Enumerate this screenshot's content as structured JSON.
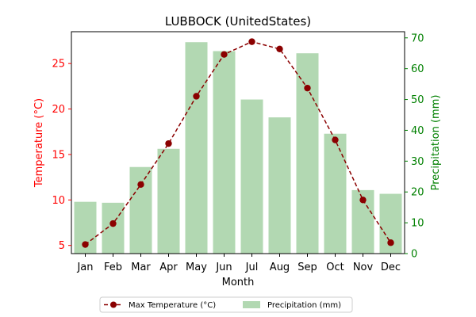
{
  "chart_data": {
    "type": "bar+line",
    "title": "LUBBOCK (UnitedStates)",
    "xlabel": "Month",
    "ylabel_left": "Temperature (°C)",
    "ylabel_right": "Precipitation (mm)",
    "categories": [
      "Jan",
      "Feb",
      "Mar",
      "Apr",
      "May",
      "Jun",
      "Jul",
      "Aug",
      "Sep",
      "Oct",
      "Nov",
      "Dec"
    ],
    "y_left_ticks": [
      5,
      10,
      15,
      20,
      25
    ],
    "y_left_range": [
      4.1,
      28.5
    ],
    "y_right_ticks": [
      0,
      10,
      20,
      30,
      40,
      50,
      60,
      70
    ],
    "y_right_range": [
      0,
      72
    ],
    "series": [
      {
        "name": "Max Temperature (°C)",
        "kind": "line",
        "axis": "left",
        "color": "#8b0000",
        "values": [
          5.1,
          7.4,
          11.7,
          16.2,
          21.4,
          26.0,
          27.4,
          26.6,
          22.3,
          16.6,
          10.0,
          5.3
        ]
      },
      {
        "name": "Precipitation (mm)",
        "kind": "bar",
        "axis": "right",
        "color": "#b2d8b2",
        "values": [
          16.8,
          16.5,
          28.1,
          34.0,
          68.6,
          65.7,
          50.0,
          44.2,
          65.0,
          38.9,
          20.6,
          19.4
        ]
      }
    ],
    "legend_position": "bottom-center",
    "colors": {
      "left_axis": "#ff0000",
      "right_axis": "#008000"
    }
  }
}
